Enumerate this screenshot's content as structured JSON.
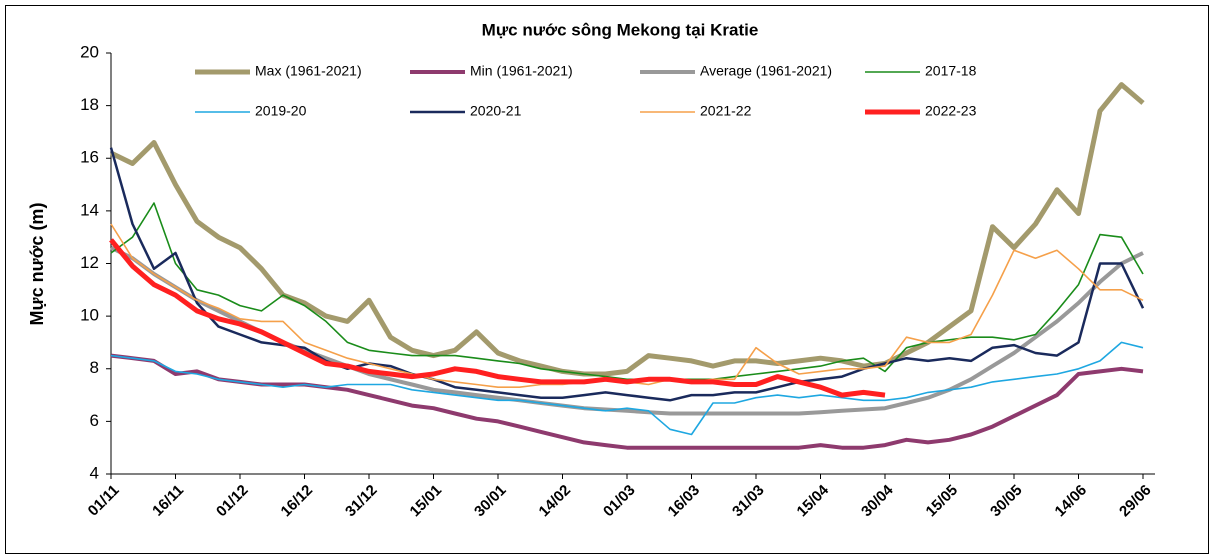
{
  "chart_data": {
    "type": "line",
    "title": "Mực nước sông Mekong tại Kratie",
    "y_label": "Mực nước (m)",
    "categories": [
      "01/11",
      null,
      null,
      "16/11",
      null,
      null,
      "01/12",
      null,
      null,
      "16/12",
      null,
      null,
      "31/12",
      null,
      null,
      "15/01",
      null,
      null,
      "30/01",
      null,
      null,
      "14/02",
      null,
      null,
      "01/03",
      null,
      null,
      "16/03",
      null,
      null,
      "31/03",
      null,
      null,
      "15/04",
      null,
      null,
      "30/04",
      null,
      null,
      "15/05",
      null,
      null,
      "30/05",
      null,
      null,
      "14/06",
      null,
      null,
      "29/06"
    ],
    "ylim": [
      4,
      20
    ],
    "yticks": [
      4,
      6,
      8,
      10,
      12,
      14,
      16,
      18,
      20
    ],
    "grid": false,
    "legend": "top",
    "series": [
      {
        "name": "Max (1961-2021)",
        "color": "#a39a6c",
        "width": 5,
        "values": [
          16.2,
          15.8,
          16.6,
          15.0,
          13.6,
          13.0,
          12.6,
          11.8,
          10.8,
          10.5,
          10.0,
          9.8,
          10.6,
          9.2,
          8.7,
          8.5,
          8.7,
          9.4,
          8.6,
          8.3,
          8.1,
          7.9,
          7.8,
          7.8,
          7.9,
          8.5,
          8.4,
          8.3,
          8.1,
          8.3,
          8.3,
          8.2,
          8.3,
          8.4,
          8.3,
          8.1,
          8.2,
          8.6,
          9.0,
          9.6,
          10.2,
          13.4,
          12.6,
          13.5,
          14.8,
          13.9,
          17.8,
          18.8,
          18.1
        ]
      },
      {
        "name": "Min (1961-2021)",
        "color": "#8e3a6e",
        "width": 4,
        "values": [
          8.5,
          8.4,
          8.3,
          7.8,
          7.9,
          7.6,
          7.5,
          7.4,
          7.4,
          7.4,
          7.3,
          7.2,
          7.0,
          6.8,
          6.6,
          6.5,
          6.3,
          6.1,
          6.0,
          5.8,
          5.6,
          5.4,
          5.2,
          5.1,
          5.0,
          5.0,
          5.0,
          5.0,
          5.0,
          5.0,
          5.0,
          5.0,
          5.0,
          5.1,
          5.0,
          5.0,
          5.1,
          5.3,
          5.2,
          5.3,
          5.5,
          5.8,
          6.2,
          6.6,
          7.0,
          7.8,
          7.9,
          8.0,
          7.9
        ]
      },
      {
        "name": "Average (1961-2021)",
        "color": "#999999",
        "width": 4,
        "values": [
          12.6,
          12.2,
          11.6,
          11.1,
          10.6,
          10.2,
          9.8,
          9.4,
          9.0,
          8.7,
          8.4,
          8.1,
          7.8,
          7.6,
          7.4,
          7.2,
          7.1,
          7.0,
          6.9,
          6.8,
          6.7,
          6.6,
          6.5,
          6.45,
          6.4,
          6.35,
          6.3,
          6.3,
          6.3,
          6.3,
          6.3,
          6.3,
          6.3,
          6.35,
          6.4,
          6.45,
          6.5,
          6.7,
          6.9,
          7.2,
          7.6,
          8.1,
          8.6,
          9.2,
          9.8,
          10.5,
          11.3,
          12.0,
          12.4
        ]
      },
      {
        "name": "2017-18",
        "color": "#1a8c1a",
        "width": 1.6,
        "values": [
          12.4,
          13.0,
          14.3,
          12.0,
          11.0,
          10.8,
          10.4,
          10.2,
          10.8,
          10.4,
          9.8,
          9.0,
          8.7,
          8.6,
          8.5,
          8.5,
          8.5,
          8.4,
          8.3,
          8.2,
          8.0,
          7.9,
          7.8,
          7.7,
          7.6,
          7.6,
          7.6,
          7.6,
          7.6,
          7.7,
          7.8,
          7.9,
          8.0,
          8.1,
          8.3,
          8.4,
          7.9,
          8.8,
          9.0,
          9.1,
          9.2,
          9.2,
          9.1,
          9.3,
          10.2,
          11.2,
          13.1,
          13.0,
          11.6
        ]
      },
      {
        "name": "2019-20",
        "color": "#1ea7e1",
        "width": 1.6,
        "values": [
          8.5,
          8.4,
          8.3,
          7.9,
          7.8,
          7.6,
          7.5,
          7.4,
          7.3,
          7.4,
          7.3,
          7.4,
          7.4,
          7.4,
          7.2,
          7.1,
          7.0,
          6.9,
          6.8,
          6.8,
          6.7,
          6.6,
          6.5,
          6.4,
          6.5,
          6.4,
          5.7,
          5.5,
          6.7,
          6.7,
          6.9,
          7.0,
          6.9,
          7.0,
          6.9,
          6.8,
          6.8,
          6.9,
          7.1,
          7.2,
          7.3,
          7.5,
          7.6,
          7.7,
          7.8,
          8.0,
          8.3,
          9.0,
          8.8
        ]
      },
      {
        "name": "2020-21",
        "color": "#1a2a5c",
        "width": 2.5,
        "values": [
          16.4,
          13.5,
          11.8,
          12.4,
          10.5,
          9.6,
          9.3,
          9.0,
          8.9,
          8.8,
          8.3,
          8.0,
          8.2,
          8.1,
          7.8,
          7.6,
          7.3,
          7.2,
          7.1,
          7.0,
          6.9,
          6.9,
          7.0,
          7.1,
          7.0,
          6.9,
          6.8,
          7.0,
          7.0,
          7.1,
          7.1,
          7.3,
          7.5,
          7.6,
          7.7,
          8.0,
          8.2,
          8.4,
          8.3,
          8.4,
          8.3,
          8.8,
          8.9,
          8.6,
          8.5,
          9.0,
          12.0,
          12.0,
          10.3
        ]
      },
      {
        "name": "2021-22",
        "color": "#f5a04a",
        "width": 1.6,
        "values": [
          13.5,
          12.2,
          11.6,
          11.1,
          10.6,
          10.3,
          9.9,
          9.8,
          9.8,
          9.0,
          8.7,
          8.4,
          8.2,
          8.0,
          7.8,
          7.6,
          7.5,
          7.4,
          7.3,
          7.3,
          7.4,
          7.4,
          7.5,
          7.6,
          7.5,
          7.4,
          7.6,
          7.5,
          7.6,
          7.6,
          8.8,
          8.2,
          7.8,
          7.9,
          8.0,
          8.0,
          8.1,
          9.2,
          9.0,
          9.0,
          9.3,
          10.8,
          12.5,
          12.2,
          12.5,
          11.8,
          11.0,
          11.0,
          10.6
        ]
      },
      {
        "name": "2022-23",
        "color": "#ff2020",
        "width": 5,
        "values": [
          12.9,
          11.9,
          11.2,
          10.8,
          10.2,
          9.9,
          9.7,
          9.4,
          9.0,
          8.6,
          8.2,
          8.1,
          7.9,
          7.8,
          7.7,
          7.8,
          8.0,
          7.9,
          7.7,
          7.6,
          7.5,
          7.5,
          7.5,
          7.6,
          7.5,
          7.6,
          7.6,
          7.5,
          7.5,
          7.4,
          7.4,
          7.7,
          7.5,
          7.3,
          7.0,
          7.1,
          7.0,
          null,
          null,
          null,
          null,
          null,
          null,
          null,
          null,
          null,
          null,
          null,
          null
        ]
      }
    ]
  }
}
